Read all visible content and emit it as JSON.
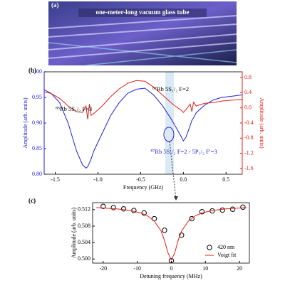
{
  "photo": {
    "label": "(a)",
    "caption": "one-meter-long vacuum glass tube"
  },
  "chart_data": [
    {
      "type": "line",
      "panel_label": "(b)",
      "xlabel": "Frequency (GHz)",
      "ylabel": "Amplitude (arb. units)",
      "y2label": "Amplitude (arb. units)",
      "x": [
        -1.63,
        -1.55,
        -1.45,
        -1.35,
        -1.25,
        -1.18,
        -1.14,
        -1.12,
        -1.1,
        -1.08,
        -1.05,
        -0.95,
        -0.85,
        -0.75,
        -0.65,
        -0.55,
        -0.45,
        -0.35,
        -0.25,
        -0.15,
        -0.08,
        -0.03,
        0.0,
        0.03,
        0.08,
        0.1,
        0.12,
        0.15,
        0.25,
        0.35,
        0.45,
        0.55,
        0.69
      ],
      "series": [
        {
          "color": "#1f1fd6",
          "values": [
            0.965,
            0.958,
            0.94,
            0.9,
            0.845,
            0.818,
            0.812,
            0.815,
            0.822,
            0.83,
            0.845,
            0.88,
            0.915,
            0.94,
            0.958,
            0.966,
            0.968,
            0.955,
            0.935,
            0.91,
            0.89,
            0.875,
            0.865,
            0.872,
            0.895,
            0.905,
            0.91,
            0.92,
            0.935,
            0.945,
            0.95,
            0.952,
            0.955
          ]
        },
        {
          "color": "#e0201b",
          "axis": "y2",
          "values": [
            0.42,
            0.38,
            0.25,
            0.05,
            -0.1,
            -0.12,
            0.05,
            -0.3,
            0.1,
            -0.2,
            -0.15,
            0.05,
            0.3,
            0.5,
            0.65,
            0.72,
            0.7,
            0.55,
            0.35,
            0.15,
            0.02,
            -0.05,
            -0.12,
            -0.05,
            0.1,
            -0.1,
            0.15,
            0.05,
            0.12,
            0.14,
            0.18,
            0.2,
            0.22
          ]
        }
      ],
      "xlim": [
        -1.63,
        0.69
      ],
      "xticks": [
        -1.5,
        {
          "value": -1,
          "label": "-1.0"
        },
        -0.5,
        {
          "value": 0,
          "label": "0.0"
        },
        0.5
      ],
      "ylim": [
        0.8,
        1.0
      ],
      "yticks": [
        {
          "value": 0.8,
          "label": "0.80"
        },
        0.85,
        {
          "value": 0.9,
          "label": "0.90"
        },
        0.95,
        {
          "value": 1,
          "label": "1.00"
        }
      ],
      "y2lim": [
        -1.75,
        0.95
      ],
      "y2ticks": [
        -1.6,
        -1.2,
        -0.8,
        -0.4,
        {
          "value": 0,
          "label": "0.0"
        },
        0.4,
        0.8
      ],
      "annotations": [
        "⁸⁵Rb 5S₁/₂ F=3",
        "⁸⁷Rb 5S₁/₂ F=2",
        "⁸⁷Rb 5S₁/₂ F=2 - 5P₃/₂ F′=3"
      ]
    },
    {
      "type": "scatter",
      "panel_label": "(c)",
      "xlabel": "Detuning frequency (MHz)",
      "ylabel": "Amplitude (arb. units)",
      "series": [
        {
          "name": "420 nm",
          "color": "#000000",
          "marker": "circle",
          "x": [
            -20,
            -17,
            -14,
            -11,
            -8,
            -5,
            -2,
            0,
            3,
            6,
            9,
            12,
            15,
            18,
            21
          ],
          "values": [
            0.5128,
            0.5125,
            0.5122,
            0.5118,
            0.5112,
            0.5098,
            0.507,
            0.4996,
            0.5058,
            0.5098,
            0.5115,
            0.5117,
            0.5119,
            0.5121,
            0.5126
          ]
        },
        {
          "name": "Voigt fit",
          "color": "#e0201b",
          "marker": "line",
          "x": [
            -22,
            -16,
            -12,
            -9,
            -7,
            -5,
            -3,
            -2,
            -1,
            0,
            1,
            2,
            3,
            5,
            7,
            9,
            12,
            16,
            22
          ],
          "values": [
            0.5125,
            0.5122,
            0.5118,
            0.5112,
            0.5105,
            0.5092,
            0.5068,
            0.5045,
            0.5015,
            0.4998,
            0.5015,
            0.5045,
            0.5068,
            0.5092,
            0.5105,
            0.5112,
            0.5118,
            0.5122,
            0.5125
          ]
        }
      ],
      "xlim": [
        -23.1,
        22.9
      ],
      "xticks": [
        -20,
        -10,
        0,
        10,
        20
      ],
      "ylim": [
        0.499,
        0.5137
      ],
      "yticks": [
        {
          "value": 0.5,
          "label": "0.500"
        },
        0.504,
        0.508,
        0.512
      ],
      "legend": "lower right"
    }
  ]
}
